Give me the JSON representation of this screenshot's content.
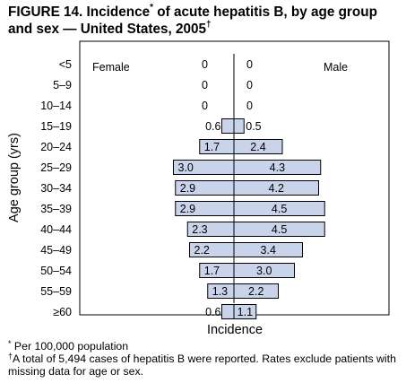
{
  "title": "FIGURE 14. Incidence",
  "title_mark": "*",
  "title_rest": " of acute hepatitis B, by age group and sex — United States, 2005",
  "title_dagger": "†",
  "footnotes": [
    {
      "mark": "*",
      "text": " Per 100,000 population"
    },
    {
      "mark": "†",
      "text": "A total of 5,494 cases of hepatitis B were reported. Rates exclude patients with missing data for age or sex."
    }
  ],
  "chart_data": {
    "type": "bar",
    "orientation": "horizontal-back-to-back",
    "categories": [
      "<5",
      "5–9",
      "10–14",
      "15–19",
      "20–24",
      "25–29",
      "30–34",
      "35–39",
      "40–44",
      "45–49",
      "50–54",
      "55–59",
      "≥60"
    ],
    "series": [
      {
        "name": "Female",
        "values": [
          0,
          0,
          0,
          0.6,
          1.7,
          3.0,
          2.9,
          2.9,
          2.3,
          2.2,
          1.7,
          1.3,
          0.6
        ]
      },
      {
        "name": "Male",
        "values": [
          0,
          0,
          0,
          0.5,
          2.4,
          4.3,
          4.2,
          4.5,
          4.5,
          3.4,
          3.0,
          2.2,
          1.1
        ]
      }
    ],
    "value_labels": {
      "female": [
        "0",
        "0",
        "0",
        "0.6",
        "1.7",
        "3.0",
        "2.9",
        "2.9",
        "2.3",
        "2.2",
        "1.7",
        "1.3",
        "0.6"
      ],
      "male": [
        "0",
        "0",
        "0",
        "0.5",
        "2.4",
        "4.3",
        "4.2",
        "4.5",
        "4.5",
        "3.4",
        "3.0",
        "2.2",
        "1.1"
      ]
    },
    "xlabel": "Incidence",
    "ylabel": "Age group (yrs)",
    "xlim": [
      -5,
      5
    ],
    "bar_fill": "#c9d3ea",
    "bar_stroke": "#000000",
    "grid": false
  }
}
